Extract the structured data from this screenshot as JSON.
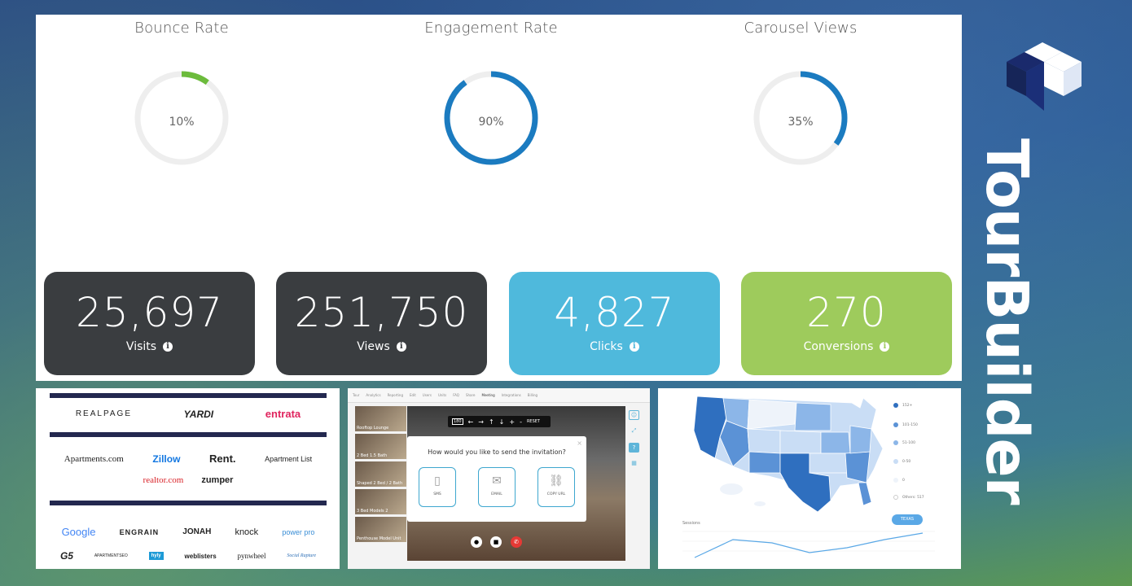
{
  "gauges": [
    {
      "title": "Bounce Rate",
      "value": "10%",
      "percent": 10,
      "color": "#6cbb3c"
    },
    {
      "title": "Engagement Rate",
      "value": "90%",
      "percent": 90,
      "color": "#1b7bc0"
    },
    {
      "title": "Carousel Views",
      "value": "35%",
      "percent": 35,
      "color": "#1b7bc0"
    }
  ],
  "cards": [
    {
      "number": "25,697",
      "label": "Visits",
      "color": "#3a3d40"
    },
    {
      "number": "251,750",
      "label": "Views",
      "color": "#3a3d40"
    },
    {
      "number": "4,827",
      "label": "Clicks",
      "color": "#4fb9dc"
    },
    {
      "number": "270",
      "label": "Conversions",
      "color": "#9ecb5c"
    }
  ],
  "logos": {
    "row1": [
      "REALPAGE",
      "YARDI",
      "entrata"
    ],
    "row2": [
      "Apartments.com",
      "Zillow",
      "Rent.",
      "Apartment List"
    ],
    "row3": [
      "realtor.com",
      "zumper"
    ],
    "row4": [
      "Google",
      "ENGRAIN",
      "JONAH",
      "knock",
      "power pro"
    ],
    "row5": [
      "G5",
      "APARTMENTSEO",
      "hyly",
      "weblisters",
      "pynwheel",
      "Social Rapture"
    ]
  },
  "tour": {
    "nav": [
      "Tour",
      "Analytics",
      "Reporting",
      "Edit",
      "Users",
      "Units",
      "FAQ",
      "Share",
      "Meeting",
      "Integrations",
      "Billing"
    ],
    "thumbs": [
      "Rooftop Lounge",
      "2 Bed 1.5 Bath",
      "Shaped 2 Bed / 2 Bath",
      "3 Bed Models 2",
      "Penthouse Model Unit"
    ],
    "toolbar": [
      "180",
      "←",
      "→",
      "↑",
      "↓",
      "+",
      "-",
      "RESET"
    ],
    "dialog_question": "How would you like to send the invitation?",
    "options": [
      "SMS",
      "EMAIL",
      "COPY URL"
    ]
  },
  "map": {
    "legend": [
      {
        "label": "152+",
        "color": "#2f6fbf"
      },
      {
        "label": "101-150",
        "color": "#5b92d6"
      },
      {
        "label": "51-100",
        "color": "#8cb6e8"
      },
      {
        "label": "0-50",
        "color": "#c9ddf5"
      },
      {
        "label": "0",
        "color": "#eef3fa"
      },
      {
        "label": "Others: 517",
        "color": "#ffffff"
      }
    ],
    "state_button": "TEXAS",
    "chart_label": "Sessions"
  },
  "brand": {
    "name": "TourBuilder"
  }
}
